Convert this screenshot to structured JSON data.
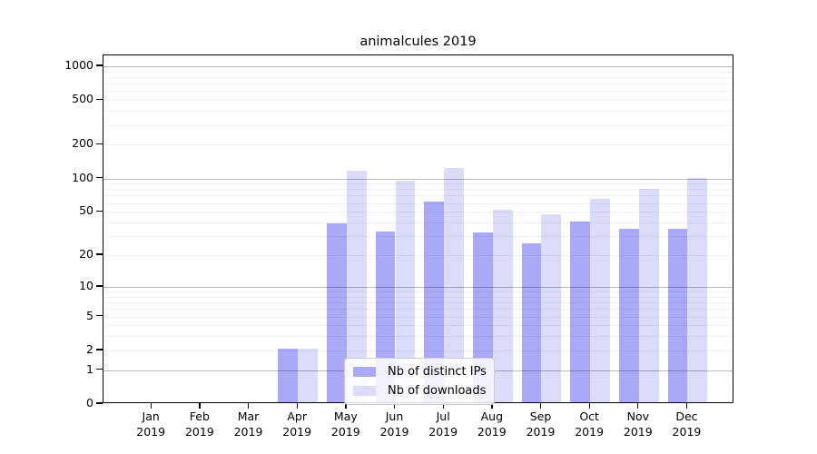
{
  "chart_data": {
    "type": "bar",
    "title": "animalcules 2019",
    "categories": [
      "Jan",
      "Feb",
      "Mar",
      "Apr",
      "May",
      "Jun",
      "Jul",
      "Aug",
      "Sep",
      "Oct",
      "Nov",
      "Dec"
    ],
    "year": "2019",
    "series": [
      {
        "name": "Nb of distinct IPs",
        "color": "#a9a9f8",
        "values": [
          0,
          0,
          0,
          2,
          38,
          32,
          60,
          31,
          25,
          39,
          34,
          34
        ]
      },
      {
        "name": "Nb of downloads",
        "color": "#dbdbfa",
        "values": [
          0,
          0,
          0,
          2,
          112,
          92,
          120,
          50,
          46,
          63,
          78,
          98
        ]
      }
    ],
    "yscale": "log1p",
    "yticks": [
      0,
      1,
      2,
      5,
      10,
      20,
      50,
      100,
      200,
      500,
      1000
    ],
    "major_gridlines": [
      1,
      10,
      100,
      1000
    ],
    "ylim": [
      0,
      1250
    ],
    "xlabel": "",
    "ylabel": "",
    "grid": "on",
    "legend_position": "inside-bottom-center"
  }
}
